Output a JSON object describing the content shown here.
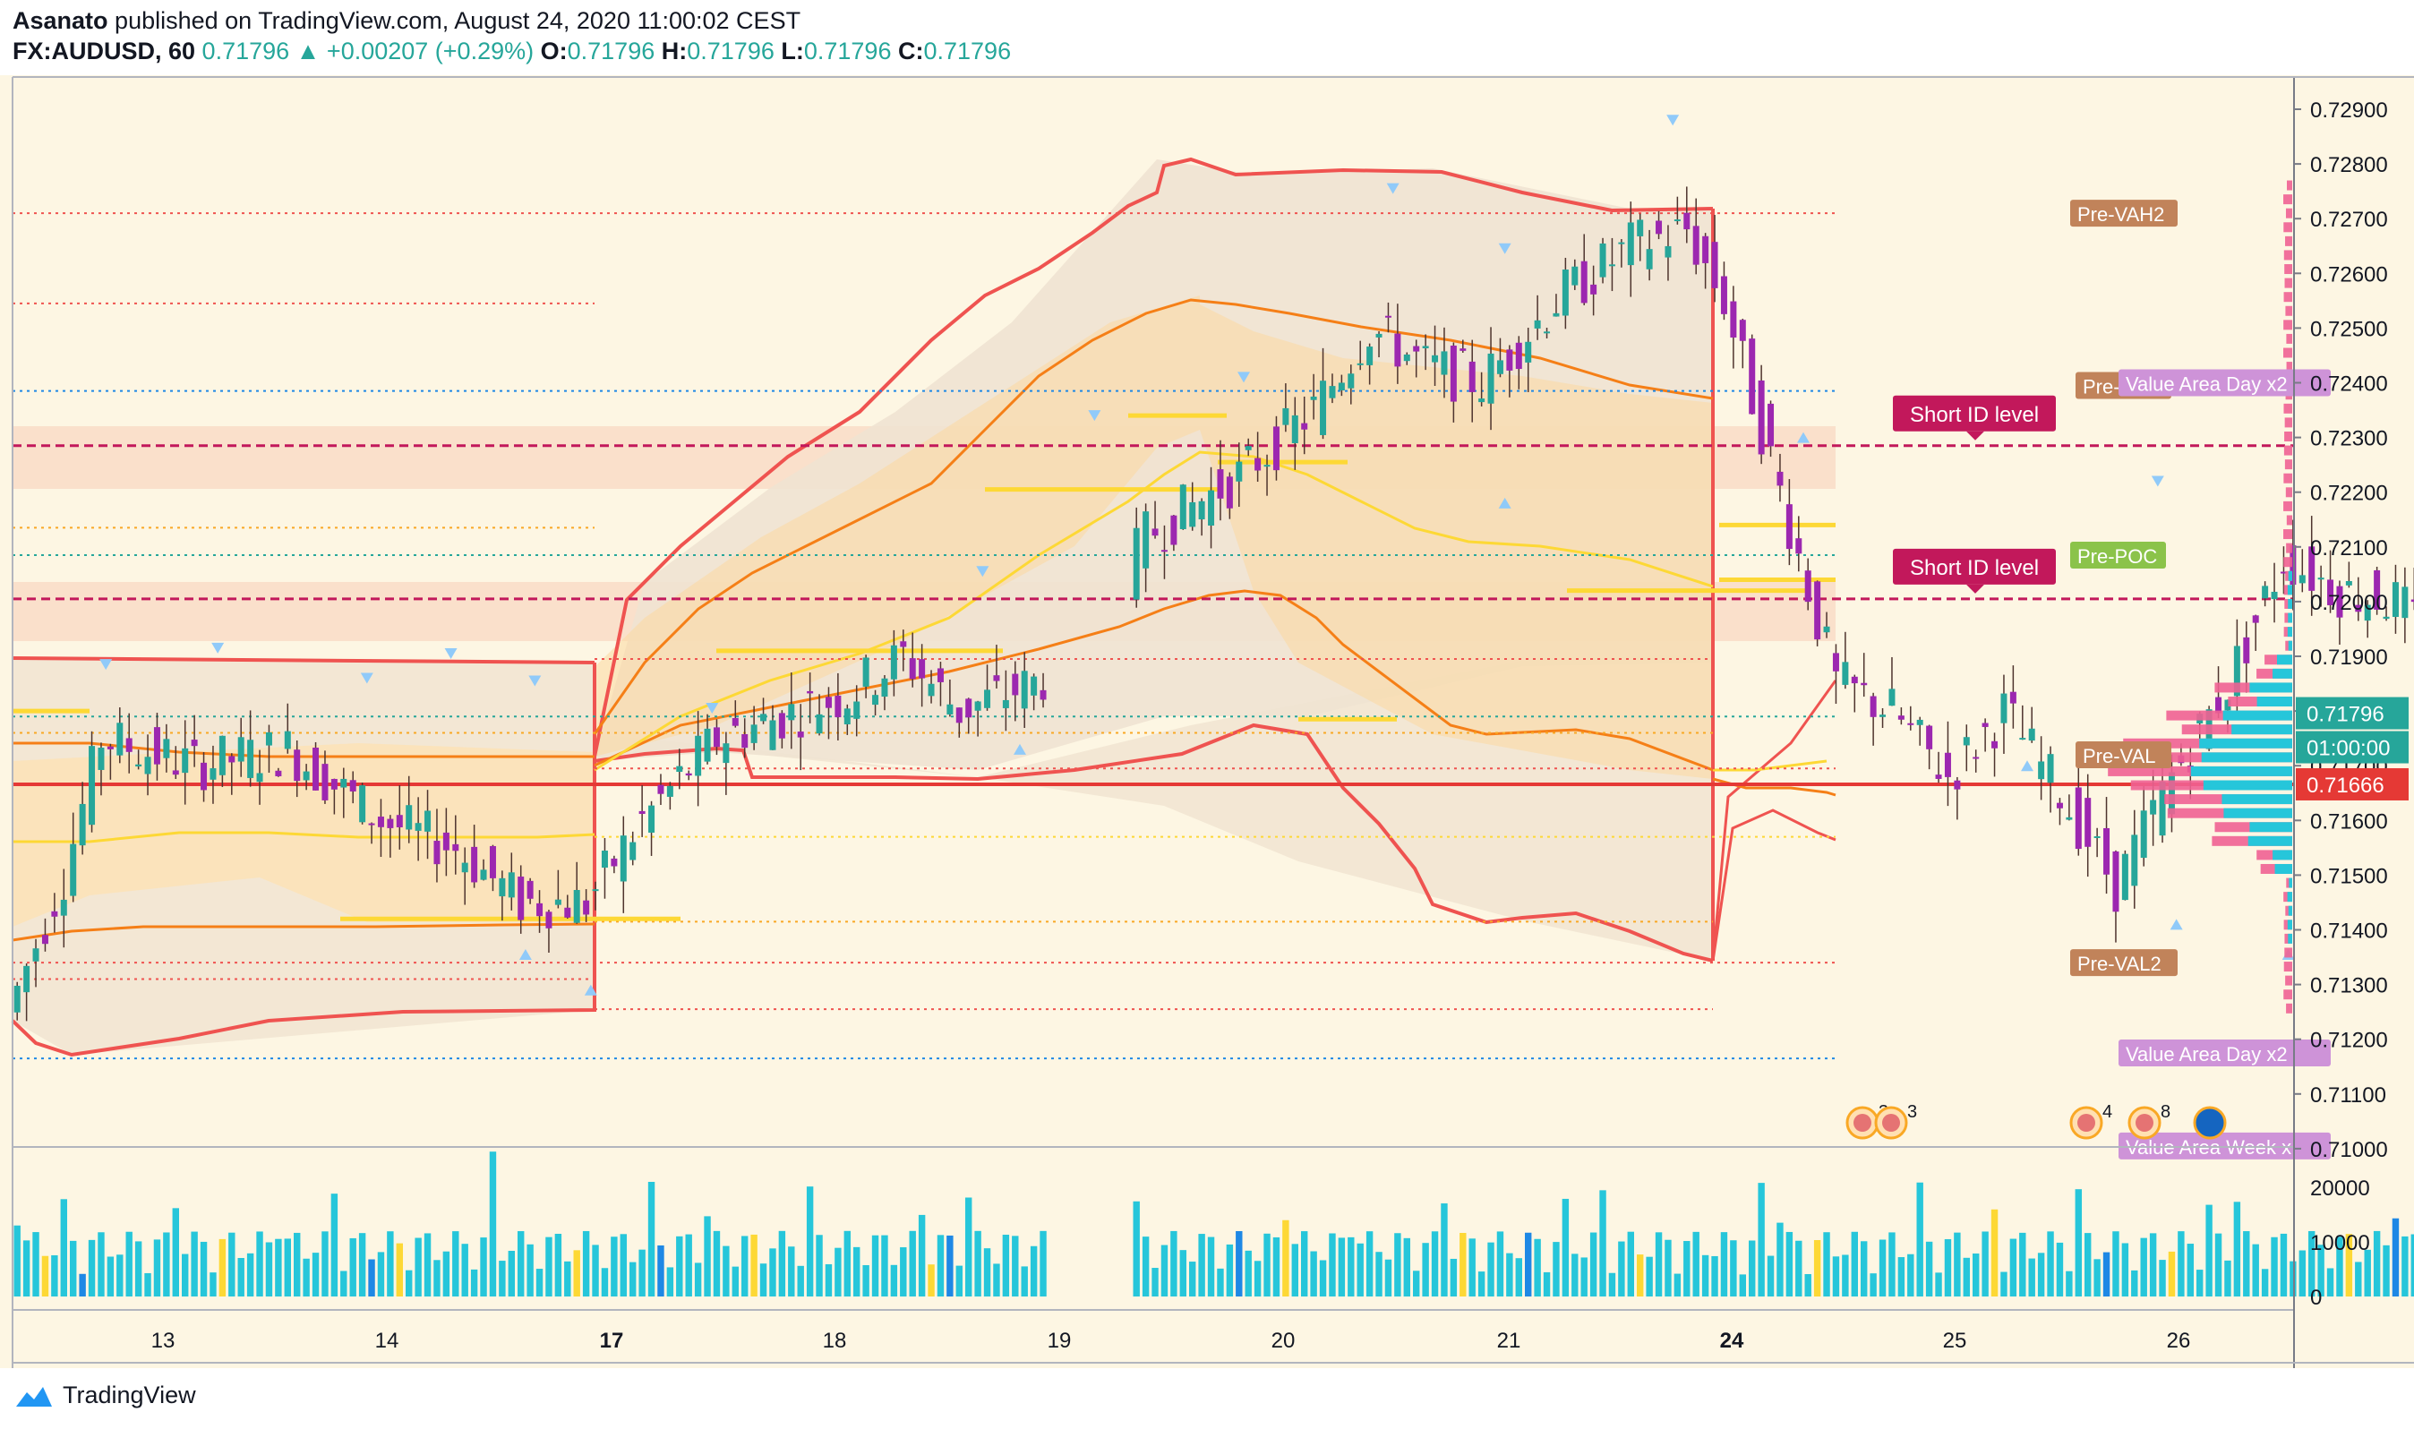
{
  "header": {
    "author": "Asanato",
    "published_text": "published on TradingView.com, August 24, 2020 11:00:02 CEST",
    "symbol": "FX:AUDUSD, 60",
    "last": "0.71796",
    "change": "+0.00207 (+0.29%)",
    "o_label": "O:",
    "o": "0.71796",
    "h_label": "H:",
    "h": "0.71796",
    "l_label": "L:",
    "l": "0.71796",
    "c_label": "C:",
    "c": "0.71796"
  },
  "footer": {
    "brand": "TradingView"
  },
  "colors": {
    "background": "#fdf6e3",
    "up": "#26a69a",
    "down": "#9c27b0",
    "band": "#ef5350",
    "orange": "#f57f17",
    "yellow": "#fdd835",
    "volume": "#26c6da",
    "short_level": "#c2185b",
    "support": "#e53935"
  },
  "chart_data": {
    "type": "candlestick",
    "symbol": "FX:AUDUSD",
    "timeframe": "60",
    "x_ticks": [
      "13",
      "14",
      "17",
      "18",
      "19",
      "20",
      "21",
      "24",
      "25",
      "26"
    ],
    "y_ticks": [
      "0.72900",
      "0.72800",
      "0.72700",
      "0.72600",
      "0.72500",
      "0.72400",
      "0.72300",
      "0.72200",
      "0.72100",
      "0.72000",
      "0.71900",
      "0.71800",
      "0.71700",
      "0.71600",
      "0.71500",
      "0.71400",
      "0.71300",
      "0.71200",
      "0.71100",
      "0.71000"
    ],
    "ylim": [
      0.71,
      0.7295
    ],
    "volume_ticks": [
      "20000",
      "10000",
      "0"
    ],
    "volume_ylim": [
      0,
      24000
    ],
    "price_labels": [
      {
        "text": "0.71796",
        "value": 0.71796,
        "color": "#26a69a"
      },
      {
        "text": "01:00:00",
        "value": 0.71735,
        "color": "#26a69a"
      },
      {
        "text": "0.71666",
        "value": 0.71666,
        "color": "#e53935"
      }
    ],
    "levels": [
      {
        "label": "Short ID level",
        "value": 0.72285
      },
      {
        "label": "Short ID level",
        "value": 0.72005
      }
    ],
    "support_level": 0.71666,
    "profile_tags": [
      {
        "text": "Pre-VAH2",
        "value": 0.7271
      },
      {
        "text": "Pre-VAH",
        "value": 0.72395
      },
      {
        "text": "Pre-POC",
        "value": 0.72085
      },
      {
        "text": "Pre-VAL",
        "value": 0.7172
      },
      {
        "text": "Pre-VAL2",
        "value": 0.7134
      },
      {
        "text": "Value Area Day x2",
        "value": 0.724
      },
      {
        "text": "Value Area Day x2",
        "value": 0.71175
      },
      {
        "text": "Value Area Week x",
        "value": 0.71005
      }
    ],
    "events": [
      {
        "label": "3",
        "bar": 132
      },
      {
        "label": "3",
        "bar": 137
      },
      {
        "label": "4",
        "bar": 148
      },
      {
        "label": "8",
        "bar": 153
      }
    ]
  }
}
